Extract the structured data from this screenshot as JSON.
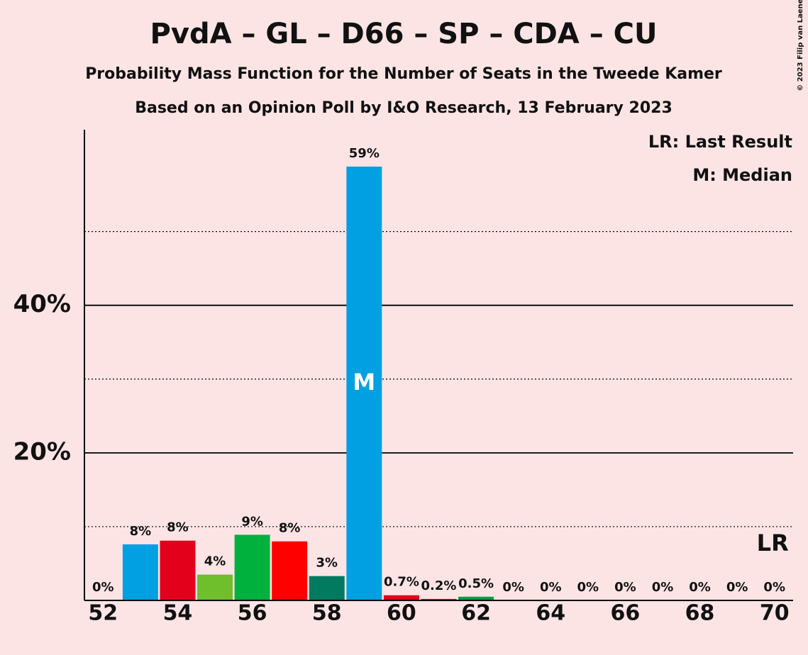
{
  "chart_data": {
    "type": "bar",
    "title": "PvdA – GL – D66 – SP – CDA – CU",
    "subtitle": "Probability Mass Function for the Number of Seats in the Tweede Kamer",
    "subtitle2": "Based on an Opinion Poll by I&O Research, 13 February 2023",
    "copyright": "© 2023 Filip van Laenen",
    "legend": [
      "LR: Last Result",
      "M: Median"
    ],
    "x": [
      52,
      53,
      54,
      55,
      56,
      57,
      58,
      59,
      60,
      61,
      62,
      63,
      64,
      65,
      66,
      67,
      68,
      69,
      70
    ],
    "values": [
      0,
      7.6,
      8.1,
      3.5,
      8.9,
      8.0,
      3.3,
      58.8,
      0.7,
      0.2,
      0.5,
      0,
      0,
      0,
      0,
      0,
      0,
      0,
      0
    ],
    "value_labels": [
      "0%",
      "8%",
      "8%",
      "4%",
      "9%",
      "8%",
      "3%",
      "59%",
      "0.7%",
      "0.2%",
      "0.5%",
      "0%",
      "0%",
      "0%",
      "0%",
      "0%",
      "0%",
      "0%",
      "0%"
    ],
    "colors": [
      "#00a0e2",
      "#00a0e2",
      "#e3001b",
      "#6fbe2c",
      "#00b13d",
      "#ff0000",
      "#007b5f",
      "#00a0e2",
      "#e3001b",
      "#e3001b",
      "#00a040",
      "#00a0e2",
      "#00a0e2",
      "#00a0e2",
      "#00a0e2",
      "#00a0e2",
      "#00a0e2",
      "#00a0e2",
      "#00a0e2"
    ],
    "median": 59,
    "median_label": "M",
    "last_result": 70,
    "last_result_label": "LR",
    "xlim": [
      51.5,
      70.5
    ],
    "xticks": [
      52,
      54,
      56,
      58,
      60,
      62,
      64,
      66,
      68,
      70
    ],
    "ylim": [
      0,
      63.8
    ],
    "yticks": [
      {
        "value": 20,
        "label": "20%"
      },
      {
        "value": 40,
        "label": "40%"
      }
    ],
    "minor_yticks": [
      10,
      30,
      50
    ],
    "grid": true
  }
}
